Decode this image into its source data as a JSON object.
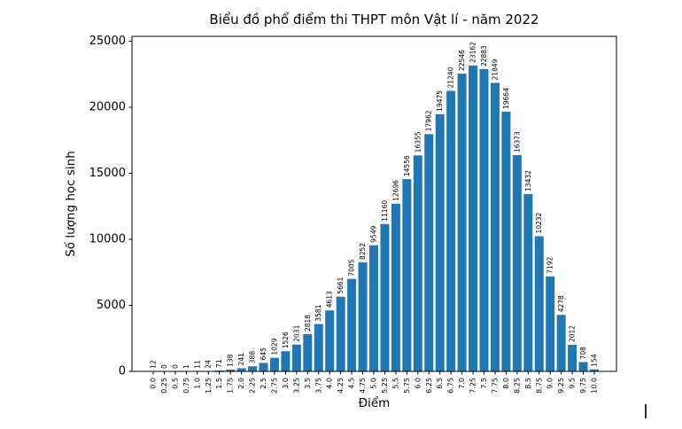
{
  "window": {
    "background": "#ffffff"
  },
  "chart_data": {
    "type": "bar",
    "title": "Biểu đồ phổ điểm thi THPT môn Vật lí - năm 2022",
    "xlabel": "Điểm",
    "ylabel": "Số lượng học sinh",
    "categories": [
      "0.0",
      "0.25",
      "0.5",
      "0.75",
      "1.0",
      "1.25",
      "1.5",
      "1.75",
      "2.0",
      "2.25",
      "2.5",
      "2.75",
      "3.0",
      "3.25",
      "3.5",
      "3.75",
      "4.0",
      "4.25",
      "4.5",
      "4.75",
      "5.0",
      "5.25",
      "5.5",
      "5.75",
      "6.0",
      "6.25",
      "6.5",
      "6.75",
      "7.0",
      "7.25",
      "7.5",
      "7.75",
      "8.0",
      "8.25",
      "8.5",
      "8.75",
      "9.0",
      "9.25",
      "9.5",
      "9.75",
      "10.0"
    ],
    "values": [
      12,
      0,
      0,
      1,
      11,
      24,
      71,
      138,
      241,
      388,
      645,
      1029,
      1526,
      2031,
      2818,
      3581,
      4613,
      5661,
      7005,
      8252,
      9549,
      11160,
      12696,
      14556,
      16355,
      17962,
      19475,
      21240,
      22546,
      23162,
      22883,
      21849,
      19664,
      16373,
      13432,
      10232,
      7192,
      4278,
      2012,
      708,
      154
    ],
    "ylim": [
      0,
      25000
    ],
    "yticks": [
      0,
      5000,
      10000,
      15000,
      20000,
      25000
    ],
    "bar_color": "#1f77b4",
    "axis_color": "#000000",
    "text_color": "#000000",
    "grid": false,
    "legend": "none",
    "xtick_rotation": 90,
    "bar_label_rotation": 90
  }
}
